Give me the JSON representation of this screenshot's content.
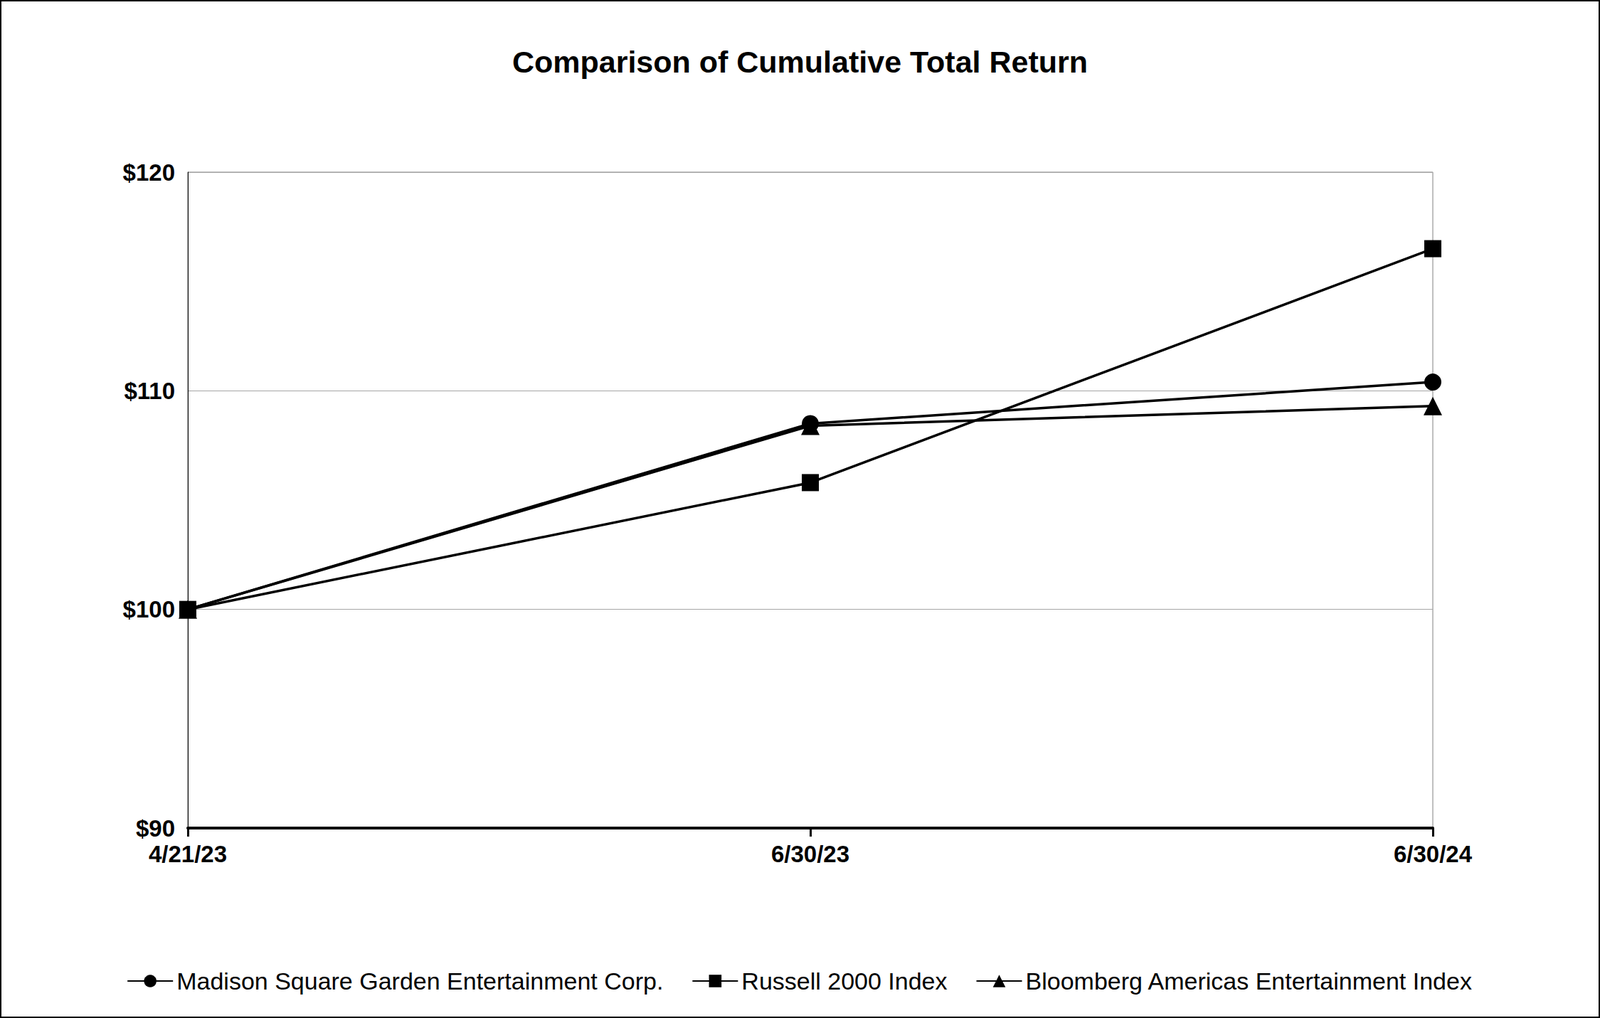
{
  "chart_data": {
    "type": "line",
    "title": "Comparison of Cumulative Total Return",
    "categories": [
      "4/21/23",
      "6/30/23",
      "6/30/24"
    ],
    "series": [
      {
        "name": "Madison Square Garden Entertainment Corp.",
        "color": "#000000",
        "marker": "circle",
        "values": [
          100,
          108.5,
          110.4
        ]
      },
      {
        "name": "Russell 2000 Index",
        "color": "#000000",
        "marker": "square",
        "values": [
          100,
          105.8,
          116.5
        ]
      },
      {
        "name": "Bloomberg Americas Entertainment Index",
        "color": "#000000",
        "marker": "triangle",
        "values": [
          100,
          108.4,
          109.3
        ]
      }
    ],
    "ylim": [
      90,
      120
    ],
    "yticks": [
      {
        "value": 90,
        "label": "$90"
      },
      {
        "value": 100,
        "label": "$100"
      },
      {
        "value": 110,
        "label": "$110"
      },
      {
        "value": 120,
        "label": "$120"
      }
    ],
    "grid": true,
    "legend": "bottom"
  }
}
